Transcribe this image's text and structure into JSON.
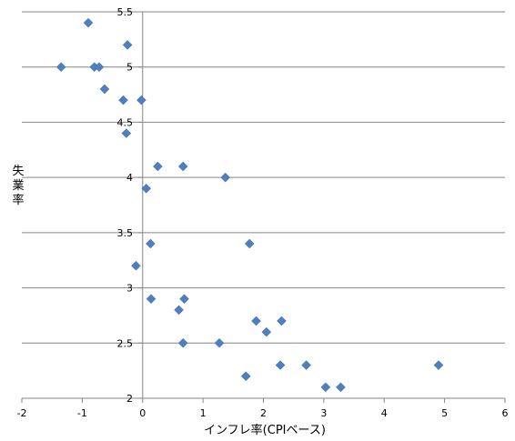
{
  "chart_data": {
    "type": "scatter",
    "title": "",
    "xlabel": "インフレ率(CPIベース)",
    "ylabel": "失業率",
    "xlim": [
      -2,
      6
    ],
    "ylim": [
      2,
      5.5
    ],
    "xticks": [
      -2,
      -1,
      0,
      1,
      2,
      3,
      4,
      5,
      6
    ],
    "yticks": [
      2,
      2.5,
      3,
      3.5,
      4,
      4.5,
      5,
      5.5
    ],
    "ytick_labels": [
      "2",
      "2.5",
      "3",
      "3.5",
      "4",
      "4.5",
      "5",
      "5.5"
    ],
    "grid": "horizontal",
    "legend": "none",
    "marker": "diamond",
    "color": "#4f7fbf",
    "points": [
      {
        "x": -0.9,
        "y": 5.4
      },
      {
        "x": -0.25,
        "y": 5.2
      },
      {
        "x": -1.35,
        "y": 5.0
      },
      {
        "x": -0.8,
        "y": 5.0
      },
      {
        "x": -0.72,
        "y": 5.0
      },
      {
        "x": -0.63,
        "y": 4.8
      },
      {
        "x": -0.32,
        "y": 4.7
      },
      {
        "x": -0.02,
        "y": 4.7
      },
      {
        "x": -0.27,
        "y": 4.4
      },
      {
        "x": 0.25,
        "y": 4.1
      },
      {
        "x": 0.67,
        "y": 4.1
      },
      {
        "x": 1.37,
        "y": 4.0
      },
      {
        "x": 0.06,
        "y": 3.9
      },
      {
        "x": 0.13,
        "y": 3.4
      },
      {
        "x": 1.77,
        "y": 3.4
      },
      {
        "x": -0.11,
        "y": 3.2
      },
      {
        "x": 0.14,
        "y": 2.9
      },
      {
        "x": 0.69,
        "y": 2.9
      },
      {
        "x": 0.6,
        "y": 2.8
      },
      {
        "x": 1.88,
        "y": 2.7
      },
      {
        "x": 2.3,
        "y": 2.7
      },
      {
        "x": 2.05,
        "y": 2.6
      },
      {
        "x": 0.67,
        "y": 2.5
      },
      {
        "x": 1.27,
        "y": 2.5
      },
      {
        "x": 2.28,
        "y": 2.3
      },
      {
        "x": 2.71,
        "y": 2.3
      },
      {
        "x": 4.9,
        "y": 2.3
      },
      {
        "x": 1.71,
        "y": 2.2
      },
      {
        "x": 3.03,
        "y": 2.1
      },
      {
        "x": 3.28,
        "y": 2.1
      }
    ]
  }
}
